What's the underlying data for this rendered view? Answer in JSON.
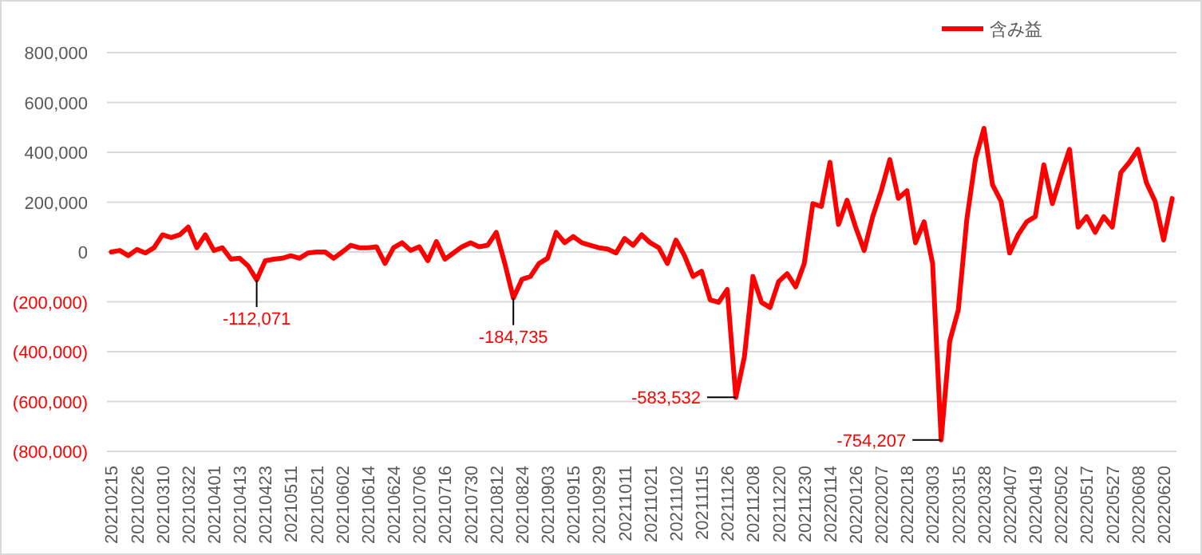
{
  "chart_data": {
    "type": "line",
    "categories": [
      "20210215",
      null,
      null,
      "20210226",
      null,
      null,
      "20210310",
      null,
      null,
      "20210322",
      null,
      null,
      "20210401",
      null,
      null,
      "20210413",
      null,
      null,
      "20210423",
      null,
      null,
      "20210511",
      null,
      null,
      "20210521",
      null,
      null,
      "20210602",
      null,
      null,
      "20210614",
      null,
      null,
      "20210624",
      null,
      null,
      "20210706",
      null,
      null,
      "20210716",
      null,
      null,
      "20210730",
      null,
      null,
      "20210812",
      null,
      null,
      "20210824",
      null,
      null,
      "20210903",
      null,
      null,
      "20210915",
      null,
      null,
      "20210929",
      null,
      null,
      "20211011",
      null,
      null,
      "20211021",
      null,
      null,
      "20211102",
      null,
      null,
      "20211115",
      null,
      null,
      "20211126",
      null,
      null,
      "20211208",
      null,
      null,
      "20211220",
      null,
      null,
      "20211230",
      null,
      null,
      "20220114",
      null,
      null,
      "20220126",
      null,
      null,
      "20220207",
      null,
      null,
      "20220218",
      null,
      null,
      "20220303",
      null,
      null,
      "20220315",
      null,
      null,
      "20220328",
      null,
      null,
      "20220407",
      null,
      null,
      "20220419",
      null,
      null,
      "20220502",
      null,
      null,
      "20220517",
      null,
      null,
      "20220527",
      null,
      null,
      "20220608",
      null,
      null,
      "20220620",
      null
    ],
    "series": [
      {
        "name": "含み益",
        "color": "#ff0000",
        "values": [
          0,
          6000,
          -15000,
          10000,
          -4000,
          17000,
          69000,
          58000,
          69000,
          100000,
          17000,
          69000,
          6000,
          17000,
          -29000,
          -25000,
          -56000,
          -112071,
          -35000,
          -29000,
          -25000,
          -15000,
          -25000,
          -4000,
          0,
          0,
          -25000,
          0,
          27000,
          17000,
          17000,
          21000,
          -46000,
          17000,
          37000,
          6000,
          21000,
          -35000,
          42000,
          -29000,
          -4000,
          21000,
          37000,
          21000,
          27000,
          79000,
          -46000,
          -184735,
          -110000,
          -98000,
          -46000,
          -25000,
          79000,
          37000,
          62000,
          37000,
          27000,
          17000,
          12000,
          -4000,
          54000,
          27000,
          69000,
          37000,
          17000,
          -46000,
          48000,
          -15000,
          -98000,
          -77000,
          -192000,
          -202000,
          -150000,
          -583532,
          -421000,
          -98000,
          -202000,
          -223000,
          -119000,
          -87000,
          -140000,
          -46000,
          194000,
          183000,
          360000,
          110000,
          208000,
          100000,
          6000,
          142000,
          246000,
          371000,
          215000,
          246000,
          37000,
          121000,
          -46000,
          -754207,
          -358000,
          -233000,
          131000,
          371000,
          496000,
          270000,
          204000,
          -4000,
          69000,
          121000,
          142000,
          350000,
          194000,
          308000,
          412000,
          100000,
          142000,
          79000,
          142000,
          100000,
          319000,
          360000,
          412000,
          277000,
          204000,
          48000,
          215000
        ]
      }
    ],
    "ylim": [
      -800000,
      800000
    ],
    "yticks": [
      {
        "value": 800000,
        "label": "800,000"
      },
      {
        "value": 600000,
        "label": "600,000"
      },
      {
        "value": 400000,
        "label": "400,000"
      },
      {
        "value": 200000,
        "label": "200,000"
      },
      {
        "value": 0,
        "label": "0"
      },
      {
        "value": -200000,
        "label": "(200,000)"
      },
      {
        "value": -400000,
        "label": "(400,000)"
      },
      {
        "value": -600000,
        "label": "(600,000)"
      },
      {
        "value": -800000,
        "label": "(800,000)"
      }
    ],
    "grid": "y",
    "legend": "top right",
    "marker": "none",
    "line_style": "solid",
    "annotations": [
      {
        "text": "-112,071",
        "y": -112071
      },
      {
        "text": "-184,735",
        "y": -184735
      },
      "-583,532",
      "-754,207"
    ]
  }
}
